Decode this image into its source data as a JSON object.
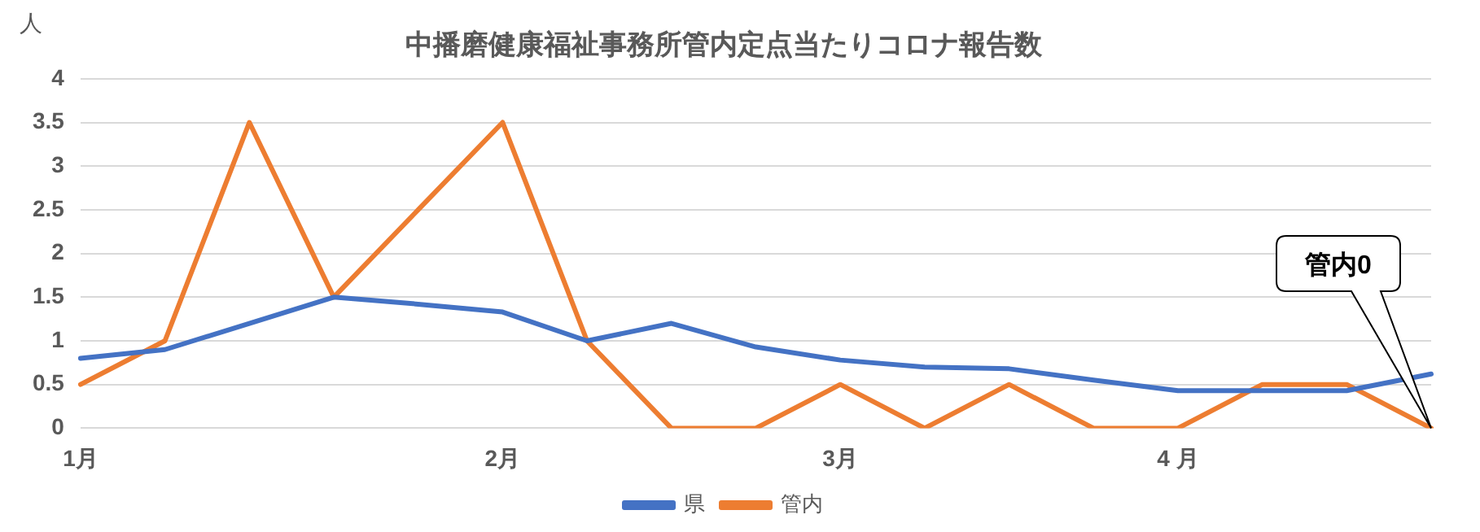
{
  "chart_data": {
    "type": "line",
    "title": "中播磨健康福祉事務所管内定点当たりコロナ報告数",
    "ylabel": "人",
    "categories": [
      "1月",
      null,
      null,
      null,
      null,
      "2月",
      null,
      null,
      null,
      "3月",
      null,
      null,
      null,
      "4 月",
      null,
      null,
      null
    ],
    "series": [
      {
        "name": "県",
        "color": "#4472c4",
        "values": [
          0.8,
          0.9,
          1.2,
          1.5,
          1.42,
          1.33,
          1.0,
          1.2,
          0.93,
          0.78,
          0.7,
          0.68,
          0.55,
          0.43,
          0.43,
          0.43,
          0.62
        ]
      },
      {
        "name": "管内",
        "color": "#ed7d31",
        "values": [
          0.5,
          1.0,
          3.5,
          1.5,
          2.5,
          3.5,
          1.0,
          0,
          0,
          0.5,
          0,
          0.5,
          0,
          0,
          0.5,
          0.5,
          0
        ]
      }
    ],
    "ylim": [
      0,
      4
    ],
    "yticks": [
      0,
      0.5,
      1,
      1.5,
      2,
      2.5,
      3,
      3.5,
      4
    ],
    "grid": "y",
    "legend": "bottom",
    "marker": "none",
    "line_style": "solid",
    "annotations": [
      "管内0"
    ]
  }
}
